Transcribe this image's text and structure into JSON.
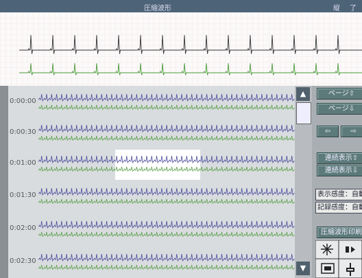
{
  "header": {
    "title": "圧縮波形",
    "right_items": [
      "縦",
      "了"
    ]
  },
  "timeline": {
    "time_labels": [
      "0:00:00",
      "0:00:30",
      "0:01:00",
      "0:01:30",
      "0:02:00",
      "0:02:30"
    ]
  },
  "controls": {
    "page": [
      "ページ⇧",
      "ページ⇩"
    ],
    "arrows": [
      "⇦",
      "⇨"
    ],
    "continuous": [
      "連続表示⇧",
      "連続表示⇩"
    ],
    "sensitivity": [
      "表示感度：自動",
      "記録感度：自動"
    ],
    "print": "圧縮波形印刷"
  }
}
